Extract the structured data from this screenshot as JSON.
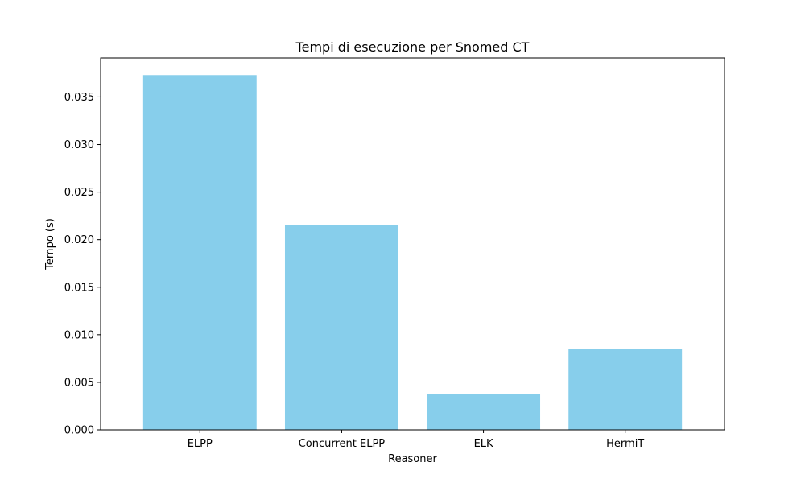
{
  "chart_data": {
    "type": "bar",
    "title": "Tempi di esecuzione per Snomed CT",
    "xlabel": "Reasoner",
    "ylabel": "Tempo (s)",
    "categories": [
      "ELPP",
      "Concurrent ELPP",
      "ELK",
      "HermiT"
    ],
    "values": [
      0.0373,
      0.0215,
      0.0038,
      0.0085
    ],
    "ylim": [
      0,
      0.0391
    ],
    "yticks": [
      0.0,
      0.005,
      0.01,
      0.015,
      0.02,
      0.025,
      0.03,
      0.035
    ],
    "ytick_labels": [
      "0.000",
      "0.005",
      "0.010",
      "0.015",
      "0.020",
      "0.025",
      "0.030",
      "0.035"
    ],
    "bar_color": "#87ceeb",
    "grid": false
  }
}
